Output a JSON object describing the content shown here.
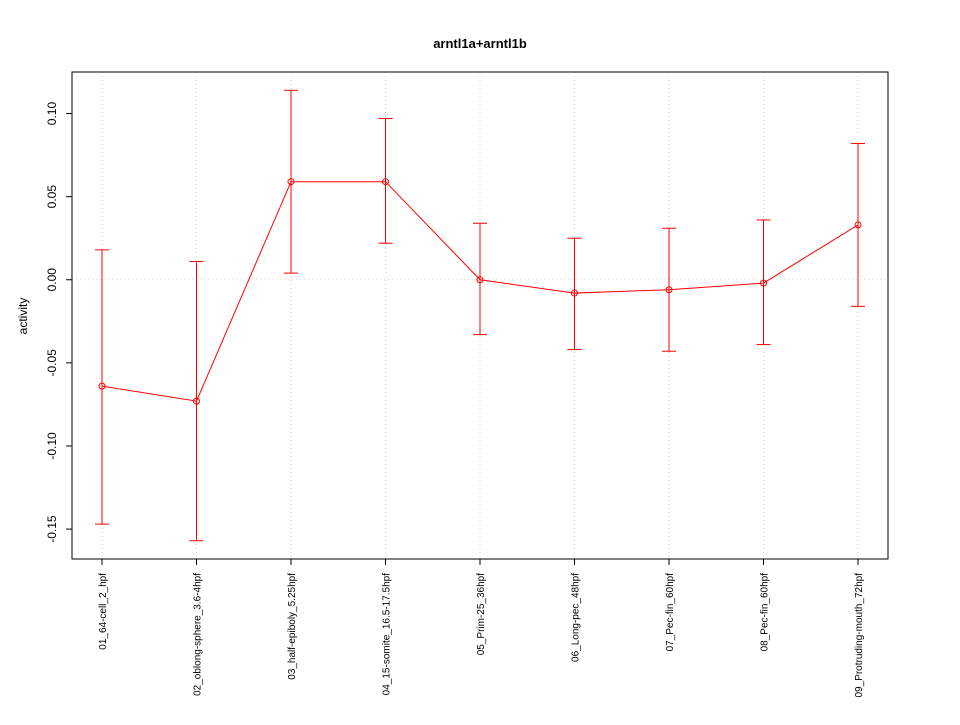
{
  "chart_data": {
    "type": "line",
    "title": "arntl1a+arntl1b",
    "xlabel": "",
    "ylabel": "activity",
    "ylim": [
      -0.168,
      0.125
    ],
    "grid": true,
    "legend": "none",
    "categories": [
      "01_64-cell_2_hpf",
      "02_oblong-sphere_3.6-4hpf",
      "03_half-epiboly_5.25hpf",
      "04_15-somite_16.5-17.5hpf",
      "05_Prim-25_36hpf",
      "06_Long-pec_48hpf",
      "07_Pec-fin_60hpf",
      "08_Pec-fin_60hpf",
      "09_Protruding-mouth_72hpf"
    ],
    "y_ticks": [
      -0.15,
      -0.1,
      -0.05,
      0.0,
      0.05,
      0.1
    ],
    "y_tick_labels": [
      "-0.15",
      "-0.10",
      "-0.05",
      "0.00",
      "0.05",
      "0.10"
    ],
    "series": [
      {
        "values": [
          -0.064,
          -0.073,
          0.059,
          0.059,
          0.0,
          -0.008,
          -0.006,
          -0.002,
          0.033
        ],
        "upper": [
          0.018,
          0.011,
          0.114,
          0.097,
          0.034,
          0.025,
          0.031,
          0.036,
          0.082
        ],
        "lower": [
          -0.147,
          -0.157,
          0.004,
          0.022,
          -0.033,
          -0.042,
          -0.043,
          -0.039,
          -0.016
        ]
      }
    ],
    "colors": {
      "series": "#ff0000",
      "grid": "#d3d3d3",
      "axis": "#000000"
    }
  }
}
